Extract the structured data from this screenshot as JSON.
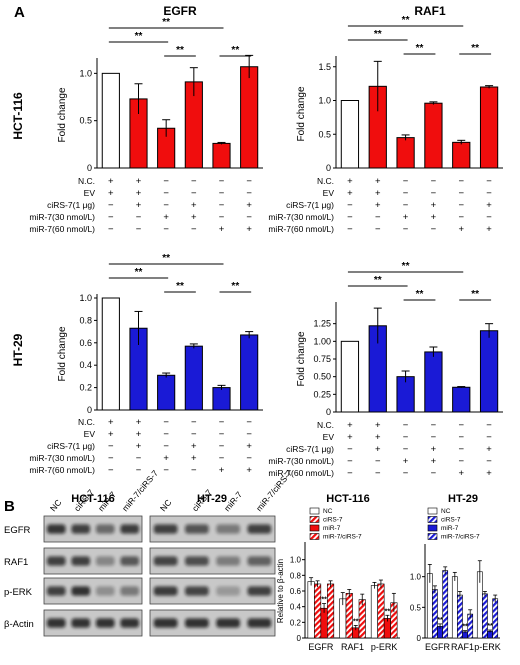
{
  "panel_labels": {
    "a": "A",
    "b": "B"
  },
  "colors": {
    "red": "#f00d0d",
    "blue": "#1a1ad6",
    "black": "#000000",
    "white": "#ffffff"
  },
  "chart_data": [
    {
      "type": "bar",
      "panel": "A",
      "row_label": "HCT-116",
      "title": "EGFR",
      "ylabel": "Fold change",
      "ylim": [
        0,
        1.12
      ],
      "yticks": [
        0,
        0.5,
        1.0
      ],
      "ytick_labels": [
        "0",
        "0.5",
        "1.0"
      ],
      "bar_colors": [
        "white",
        "red",
        "red",
        "red",
        "red",
        "red"
      ],
      "values": [
        1.0,
        0.73,
        0.42,
        0.91,
        0.26,
        1.07
      ],
      "errors": [
        0,
        0.16,
        0.09,
        0.15,
        0.01,
        0.12
      ],
      "significance": [
        {
          "label": "**",
          "from": 0,
          "to": 4
        },
        {
          "label": "**",
          "from": 0,
          "to": 2
        },
        {
          "label": "**",
          "from": 2,
          "to": 3
        },
        {
          "label": "**",
          "from": 4,
          "to": 5
        }
      ],
      "table_rows": [
        {
          "label": "N.C.",
          "cells": [
            "+",
            "+",
            "−",
            "−",
            "−",
            "−"
          ]
        },
        {
          "label": "EV",
          "cells": [
            "+",
            "+",
            "−",
            "−",
            "−",
            "−"
          ]
        },
        {
          "label": "ciRS-7(1 μg)",
          "cells": [
            "−",
            "+",
            "−",
            "+",
            "−",
            "+"
          ]
        },
        {
          "label": "miR-7(30 nmol/L)",
          "cells": [
            "−",
            "−",
            "+",
            "+",
            "−",
            "−"
          ]
        },
        {
          "label": "miR-7(60 nmol/L)",
          "cells": [
            "−",
            "−",
            "−",
            "−",
            "+",
            "+"
          ]
        }
      ]
    },
    {
      "type": "bar",
      "panel": "A",
      "row_label": "",
      "title": "RAF1",
      "ylabel": "Fold change",
      "ylim": [
        0,
        1.6
      ],
      "yticks": [
        0,
        0.5,
        1.0,
        1.5
      ],
      "ytick_labels": [
        "0",
        "0.5",
        "1.0",
        "1.5"
      ],
      "bar_colors": [
        "white",
        "red",
        "red",
        "red",
        "red",
        "red"
      ],
      "values": [
        1.0,
        1.21,
        0.45,
        0.96,
        0.38,
        1.2
      ],
      "errors": [
        0,
        0.37,
        0.04,
        0.02,
        0.03,
        0.02
      ],
      "significance": [
        {
          "label": "**",
          "from": 0,
          "to": 4
        },
        {
          "label": "**",
          "from": 0,
          "to": 2
        },
        {
          "label": "**",
          "from": 2,
          "to": 3
        },
        {
          "label": "**",
          "from": 4,
          "to": 5
        }
      ],
      "table_rows": [
        {
          "label": "N.C.",
          "cells": [
            "+",
            "+",
            "−",
            "−",
            "−",
            "−"
          ]
        },
        {
          "label": "EV",
          "cells": [
            "+",
            "+",
            "−",
            "−",
            "−",
            "−"
          ]
        },
        {
          "label": "ciRS-7(1 μg)",
          "cells": [
            "−",
            "+",
            "−",
            "+",
            "−",
            "+"
          ]
        },
        {
          "label": "miR-7(30 nmol/L)",
          "cells": [
            "−",
            "−",
            "+",
            "+",
            "−",
            "−"
          ]
        },
        {
          "label": "miR-7(60 nmol/L)",
          "cells": [
            "−",
            "−",
            "−",
            "−",
            "+",
            "+"
          ]
        }
      ]
    },
    {
      "type": "bar",
      "panel": "A",
      "row_label": "HT-29",
      "title": "",
      "ylabel": "Fold change",
      "ylim": [
        0,
        1.0
      ],
      "yticks": [
        0,
        0.2,
        0.4,
        0.6,
        0.8,
        1.0
      ],
      "ytick_labels": [
        "0",
        "0.2",
        "0.4",
        "0.6",
        "0.8",
        "1.0"
      ],
      "bar_colors": [
        "white",
        "blue",
        "blue",
        "blue",
        "blue",
        "blue"
      ],
      "values": [
        1.0,
        0.73,
        0.31,
        0.57,
        0.2,
        0.67
      ],
      "errors": [
        0,
        0.15,
        0.02,
        0.02,
        0.02,
        0.03
      ],
      "significance": [
        {
          "label": "**",
          "from": 0,
          "to": 4
        },
        {
          "label": "**",
          "from": 0,
          "to": 2
        },
        {
          "label": "**",
          "from": 2,
          "to": 3
        },
        {
          "label": "**",
          "from": 4,
          "to": 5
        }
      ],
      "table_rows": [
        {
          "label": "N.C.",
          "cells": [
            "+",
            "+",
            "−",
            "−",
            "−",
            "−"
          ]
        },
        {
          "label": "EV",
          "cells": [
            "+",
            "+",
            "−",
            "−",
            "−",
            "−"
          ]
        },
        {
          "label": "ciRS-7(1 μg)",
          "cells": [
            "−",
            "+",
            "−",
            "+",
            "−",
            "+"
          ]
        },
        {
          "label": "miR-7(30 nmol/L)",
          "cells": [
            "−",
            "−",
            "+",
            "+",
            "−",
            "−"
          ]
        },
        {
          "label": "miR-7(60 nmol/L)",
          "cells": [
            "−",
            "−",
            "−",
            "−",
            "+",
            "+"
          ]
        }
      ]
    },
    {
      "type": "bar",
      "panel": "A",
      "row_label": "",
      "title": "",
      "ylabel": "Fold change",
      "ylim": [
        0,
        1.5
      ],
      "yticks": [
        0,
        0.25,
        0.5,
        0.75,
        1.0,
        1.25
      ],
      "ytick_labels": [
        "0",
        "0.25",
        "0.50",
        "0.75",
        "1.00",
        "1.25"
      ],
      "bar_colors": [
        "white",
        "blue",
        "blue",
        "blue",
        "blue",
        "blue"
      ],
      "values": [
        1.0,
        1.22,
        0.5,
        0.85,
        0.35,
        1.15
      ],
      "errors": [
        0,
        0.25,
        0.08,
        0.07,
        0.01,
        0.1
      ],
      "significance": [
        {
          "label": "**",
          "from": 0,
          "to": 4
        },
        {
          "label": "**",
          "from": 0,
          "to": 2
        },
        {
          "label": "**",
          "from": 2,
          "to": 3
        },
        {
          "label": "**",
          "from": 4,
          "to": 5
        }
      ],
      "table_rows": [
        {
          "label": "N.C.",
          "cells": [
            "+",
            "+",
            "−",
            "−",
            "−",
            "−"
          ]
        },
        {
          "label": "EV",
          "cells": [
            "+",
            "+",
            "−",
            "−",
            "−",
            "−"
          ]
        },
        {
          "label": "ciRS-7(1 μg)",
          "cells": [
            "−",
            "+",
            "−",
            "+",
            "−",
            "+"
          ]
        },
        {
          "label": "miR-7(30 nmol/L)",
          "cells": [
            "−",
            "−",
            "+",
            "+",
            "−",
            "−"
          ]
        },
        {
          "label": "miR-7(60 nmol/L)",
          "cells": [
            "−",
            "−",
            "−",
            "−",
            "+",
            "+"
          ]
        }
      ]
    },
    {
      "type": "bar",
      "panel": "B",
      "title": "HCT-116",
      "ylabel": "Relative to β-actin",
      "ylim": [
        0,
        1.2
      ],
      "yticks": [
        0,
        0.2,
        0.4,
        0.6,
        0.8,
        1.0
      ],
      "ytick_labels": [
        "0",
        "0.2",
        "0.4",
        "0.6",
        "0.8",
        "1.0"
      ],
      "categories": [
        "EGFR",
        "RAF1",
        "p-ERK"
      ],
      "legend_position": "top",
      "series": [
        {
          "name": "NC",
          "fill": "white",
          "values": [
            0.72,
            0.5,
            0.67
          ],
          "errors": [
            0.05,
            0.08,
            0.04
          ]
        },
        {
          "name": "ciRS-7",
          "fill": "red-hatch",
          "values": [
            0.69,
            0.57,
            0.69
          ],
          "errors": [
            0.04,
            0.05,
            0.05
          ]
        },
        {
          "name": "miR-7",
          "fill": "red",
          "values": [
            0.38,
            0.13,
            0.25
          ],
          "errors": [
            0.06,
            0.03,
            0.04
          ]
        },
        {
          "name": "miR-7/ciRS-7",
          "fill": "red-hatch",
          "values": [
            0.69,
            0.49,
            0.45
          ],
          "errors": [
            0.04,
            0.07,
            0.12
          ]
        }
      ],
      "annotations": [
        "**",
        "**",
        "**"
      ]
    },
    {
      "type": "bar",
      "panel": "B",
      "title": "HT-29",
      "ylabel": "",
      "ylim": [
        0,
        1.5
      ],
      "yticks": [
        0,
        0.5,
        1.0
      ],
      "ytick_labels": [
        "0",
        "0.5",
        "1.0"
      ],
      "categories": [
        "EGFR",
        "RAF1",
        "p-ERK"
      ],
      "legend_position": "top",
      "series": [
        {
          "name": "NC",
          "fill": "white",
          "values": [
            1.05,
            1.0,
            1.08
          ],
          "errors": [
            0.15,
            0.07,
            0.18
          ]
        },
        {
          "name": "ciRS-7",
          "fill": "blue-hatch",
          "values": [
            0.79,
            0.7,
            0.72
          ],
          "errors": [
            0.06,
            0.06,
            0.04
          ]
        },
        {
          "name": "miR-7",
          "fill": "blue",
          "values": [
            0.19,
            0.1,
            0.11
          ],
          "errors": [
            0.04,
            0.02,
            0.02
          ]
        },
        {
          "name": "miR-7/ciRS-7",
          "fill": "blue-hatch",
          "values": [
            1.1,
            0.39,
            0.64
          ],
          "errors": [
            0.06,
            0.07,
            0.06
          ]
        }
      ],
      "annotations": [
        "**",
        "**",
        "**"
      ]
    }
  ],
  "blots": {
    "row_labels": [
      "EGFR",
      "RAF1",
      "p-ERK",
      "β-Actin"
    ],
    "panels": [
      {
        "title": "HCT-116",
        "lanes": [
          "NC",
          "ciRS-7",
          "miR-7",
          "miR-7/ciRS-7"
        ],
        "intensity": [
          [
            0.78,
            0.72,
            0.5,
            0.74
          ],
          [
            0.72,
            0.72,
            0.35,
            0.6
          ],
          [
            0.72,
            0.8,
            0.3,
            0.42
          ],
          [
            0.8,
            0.8,
            0.8,
            0.8
          ]
        ]
      },
      {
        "title": "HT-29",
        "lanes": [
          "NC",
          "ciRS-7",
          "miR-7",
          "miR-7/ciRS-7"
        ],
        "intensity": [
          [
            0.72,
            0.62,
            0.42,
            0.72
          ],
          [
            0.7,
            0.65,
            0.4,
            0.55
          ],
          [
            0.75,
            0.7,
            0.25,
            0.72
          ],
          [
            0.8,
            0.8,
            0.8,
            0.8
          ]
        ]
      }
    ]
  }
}
